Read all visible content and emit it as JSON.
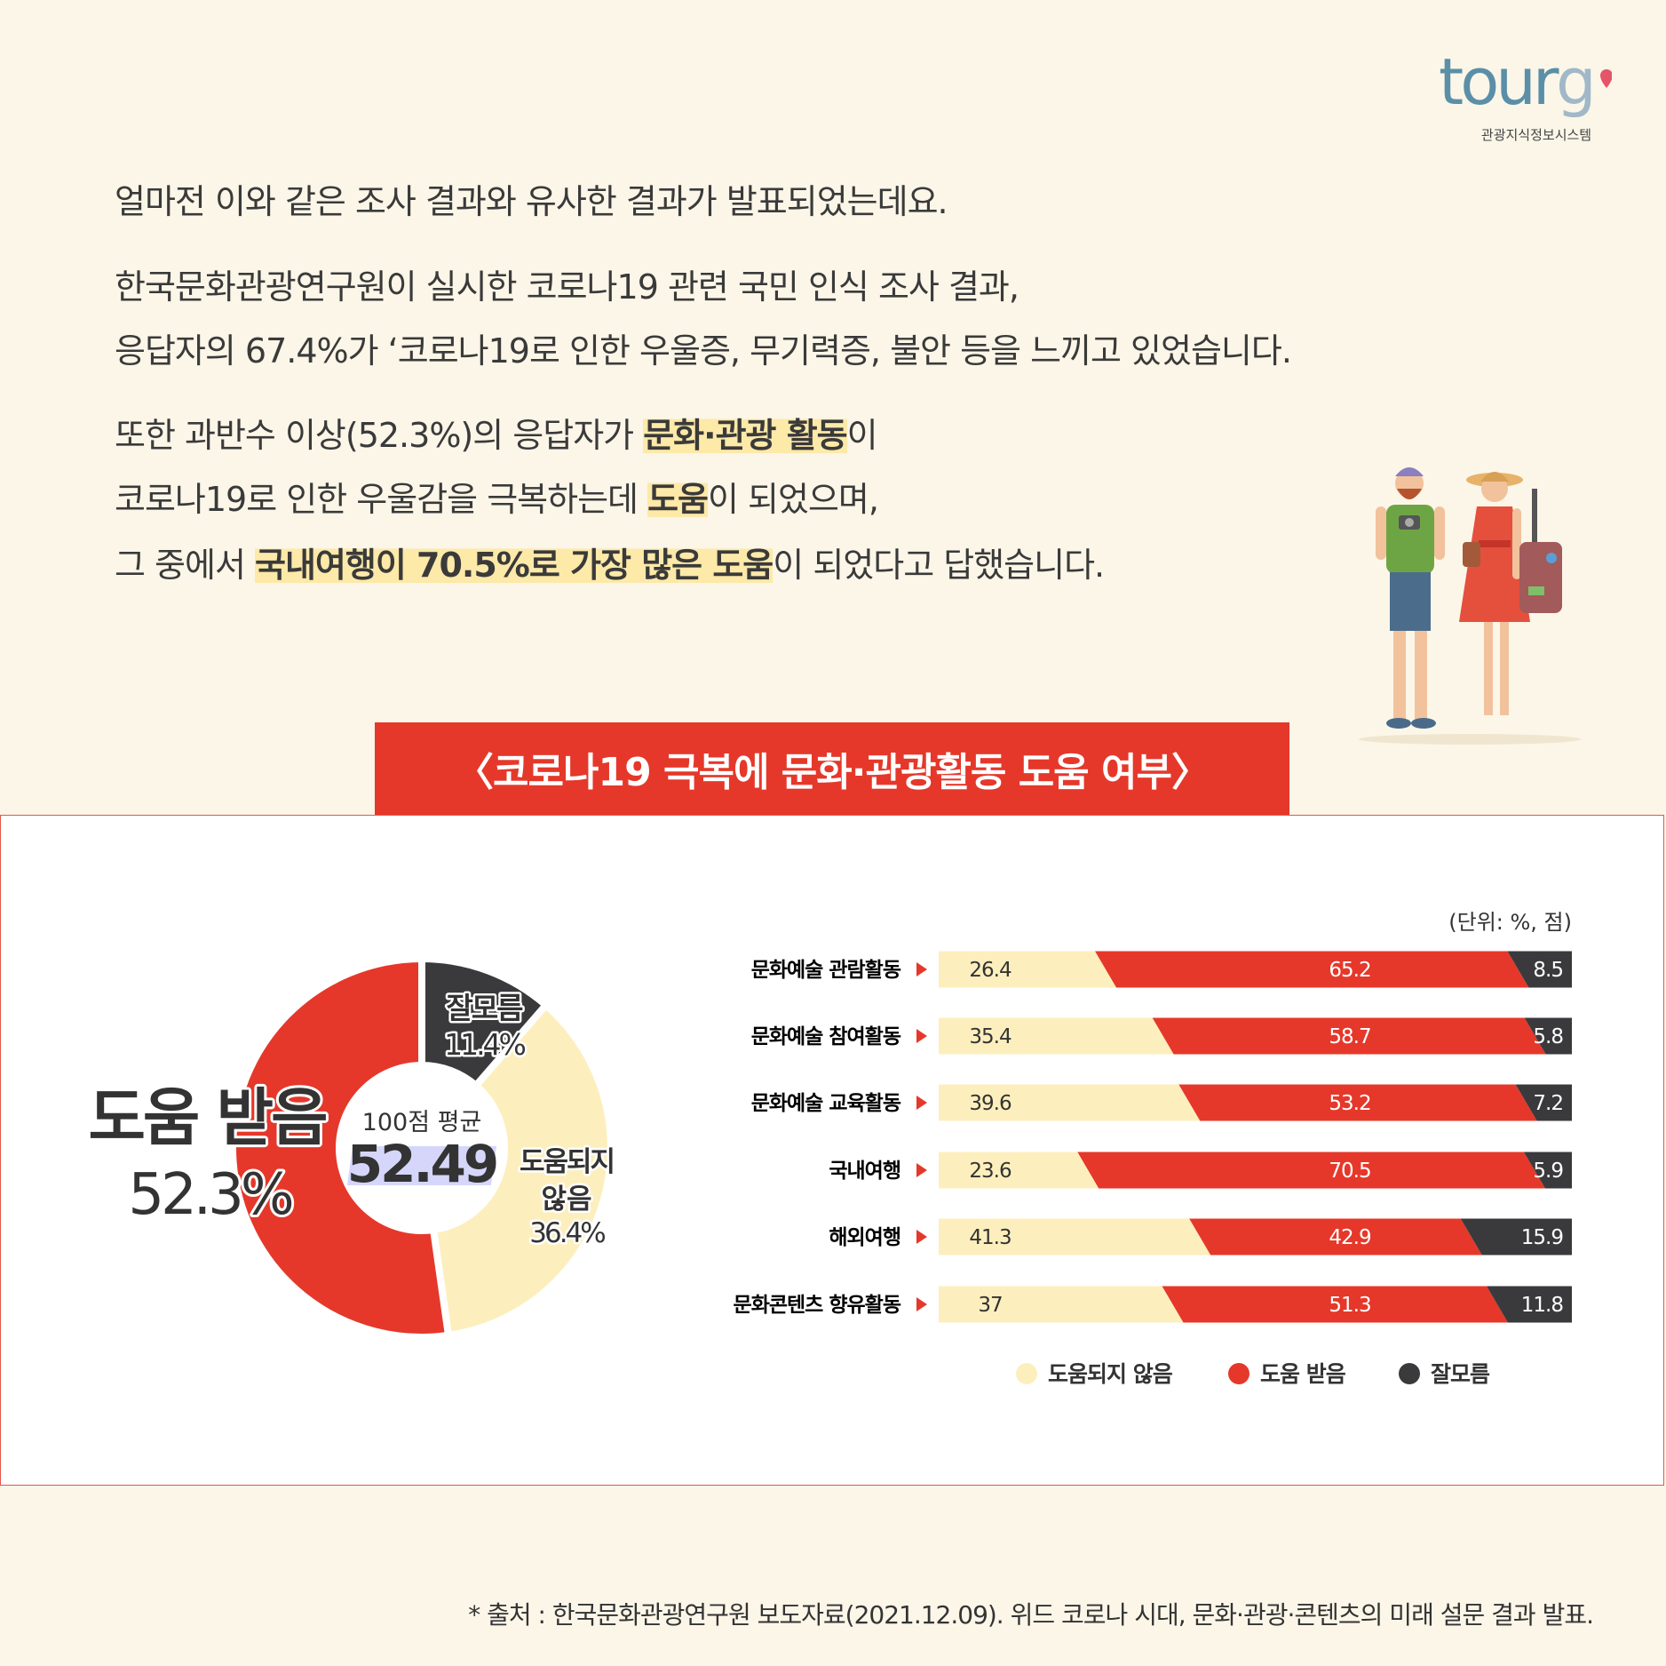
{
  "logo": {
    "text": "tourg",
    "subtitle": "관광지식정보시스템"
  },
  "paragraphs": {
    "p1": "얼마전 이와 같은 조사 결과와 유사한 결과가 발표되었는데요.",
    "p2_line1": "한국문화관광연구원이 실시한 코로나19 관련 국민 인식 조사 결과,",
    "p2_line2": "응답자의 67.4%가 ‘코로나19로 인한 우울증, 무기력증, 불안 등을 느끼고 있었습니다.",
    "p3_line1_a": "또한 과반수 이상(52.3%)의 응답자가 ",
    "p3_line1_hl": "문화·관광 활동",
    "p3_line1_b": "이",
    "p3_line2_a": "코로나19로 인한 우울감을 극복하는데 ",
    "p3_line2_hl": "도움",
    "p3_line2_b": "이 되었으며,",
    "p3_line3_a": "그 중에서 ",
    "p3_line3_hl": "국내여행이 70.5%로 가장 많은 도움",
    "p3_line3_b": "이 되었다고 답했습니다."
  },
  "colors": {
    "background": "#fbf6e8",
    "red": "#e5382a",
    "cream": "#fdefbd",
    "dark": "#3a3a3c",
    "highlight": "#fde9a8",
    "score_highlight": "#d6d6fb"
  },
  "footer": "* 출처 : 한국문화관광연구원 보도자료(2021.12.09). 위드 코로나 시대, 문화·관광·콘텐츠의 미래 설문 결과 발표.",
  "chart_data": [
    {
      "type": "pie",
      "title": "〈코로나19 극복에 문화·관광활동 도움 여부〉",
      "donut": true,
      "slices": [
        {
          "name": "잘모름",
          "value": 11.4,
          "label": "11.4%",
          "color": "#3a3a3c"
        },
        {
          "name": "도움되지 않음",
          "name_line1": "도움되지",
          "name_line2": "않음",
          "value": 36.4,
          "label": "36.4%",
          "color": "#fdefbd"
        },
        {
          "name": "도움 받음",
          "value": 52.3,
          "label": "52.3%",
          "color": "#e5382a"
        }
      ],
      "center": {
        "caption": "100점 평균",
        "value": "52.49"
      }
    },
    {
      "type": "bar",
      "orientation": "horizontal",
      "stacked": true,
      "unit_label": "(단위: %, 점)",
      "categories": [
        "문화예술 관람활동",
        "문화예술 참여활동",
        "문화예술 교육활동",
        "국내여행",
        "해외여행",
        "문화콘텐츠 향유활동"
      ],
      "series": [
        {
          "name": "도움되지 않음",
          "color": "#fdefbd",
          "values": [
            26.4,
            35.4,
            39.6,
            23.6,
            41.3,
            37
          ],
          "labels": [
            "26.4",
            "35.4",
            "39.6",
            "23.6",
            "41.3",
            "37"
          ]
        },
        {
          "name": "도움 받음",
          "color": "#e5382a",
          "values": [
            65.2,
            58.7,
            53.2,
            70.5,
            42.9,
            51.3
          ],
          "labels": [
            "65.2",
            "58.7",
            "53.2",
            "70.5",
            "42.9",
            "51.3"
          ]
        },
        {
          "name": "잘모름",
          "color": "#3a3a3c",
          "values": [
            8.5,
            5.8,
            7.2,
            5.9,
            15.9,
            11.8
          ],
          "labels": [
            "8.5",
            "5.8",
            "7.2",
            "5.9",
            "15.9",
            "11.8"
          ]
        }
      ],
      "legend_position": "bottom"
    }
  ]
}
